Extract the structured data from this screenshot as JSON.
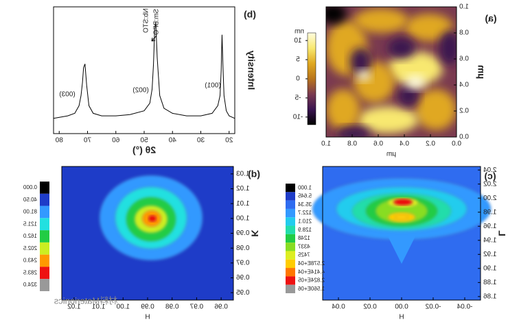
{
  "chart_data": [
    {
      "type": "heatmap",
      "panel_label": "(a)",
      "xlabel": "µm",
      "ylabel": "µm",
      "xlim": [
        0,
        1
      ],
      "ylim": [
        0,
        1
      ],
      "xticks": [
        {
          "value": 0,
          "label": "0.0"
        },
        0.2,
        0.4,
        0.6,
        0.8,
        {
          "value": 1,
          "label": "1.0"
        }
      ],
      "yticks": [
        {
          "value": 0,
          "label": "0.0"
        },
        0.2,
        0.4,
        0.6,
        0.8,
        {
          "value": 1,
          "label": "1.0"
        }
      ],
      "colorbar_unit": "nm",
      "colorbar_lim": [
        -12,
        12
      ],
      "colorbar_ticks": [
        -10,
        -5,
        0,
        5,
        10
      ],
      "colormap": [
        "#000000",
        "#3a1450",
        "#7a3a50",
        "#b8741c",
        "#e0a820",
        "#f8e870",
        "#fffde0"
      ]
    },
    {
      "type": "line",
      "panel_label": "(b)",
      "xlabel": "2θ (°)",
      "ylabel": "Intensity",
      "xlim": [
        18,
        82
      ],
      "xticks": [
        20,
        30,
        40,
        50,
        60,
        70,
        80
      ],
      "ylim": [
        0,
        100
      ],
      "annotations": [
        "(001)",
        "(002)",
        "(003)",
        "Nb:STO",
        "Sm:BFO"
      ],
      "series": [
        {
          "color": "#000000",
          "x": [
            18,
            20,
            21,
            21.8,
            22.2,
            22.5,
            22.8,
            23.2,
            24,
            26,
            30,
            35,
            40,
            43,
            44.5,
            45.4,
            45.9,
            46.3,
            46.7,
            47.2,
            48,
            50,
            55,
            60,
            65,
            68,
            69.5,
            70.3,
            70.9,
            71.4,
            71.8,
            72.3,
            73,
            74.5,
            77,
            82
          ],
          "values": [
            12,
            14,
            18,
            30,
            55,
            78,
            50,
            30,
            22,
            16,
            14,
            14,
            16,
            20,
            30,
            60,
            88,
            82,
            55,
            35,
            24,
            18,
            15,
            14,
            14,
            16,
            22,
            38,
            55,
            52,
            40,
            30,
            22,
            16,
            14,
            12
          ]
        }
      ]
    },
    {
      "type": "contour",
      "panel_label": "(c)",
      "xlabel": "H",
      "ylabel": "L",
      "xlim": [
        -0.05,
        0.05
      ],
      "ylim": [
        1.855,
        2.045
      ],
      "xticks": [
        -0.04,
        -0.02,
        {
          "value": 0,
          "label": "0.00"
        },
        0.02,
        0.04
      ],
      "yticks": [
        1.86,
        1.88,
        {
          "value": 1.9,
          "label": "1.90"
        },
        1.92,
        1.94,
        1.96,
        1.98,
        {
          "value": 2,
          "label": "2.00"
        },
        2.02,
        2.04
      ],
      "colorbar_labels": [
        "1.000",
        "5.645",
        "35.34",
        "122.7",
        "210.1",
        "128.9",
        "1248",
        "4337",
        "7425",
        "2.578E+04",
        "4.414E+04",
        "2.824E+05",
        "1.560E+06"
      ],
      "colors": [
        "#000000",
        "#1e3cc8",
        "#2f6cf0",
        "#3399ff",
        "#22ccee",
        "#22ddaa",
        "#22cc44",
        "#88dd22",
        "#ddee22",
        "#ffcc00",
        "#ff7700",
        "#ee1111",
        "#999999"
      ]
    },
    {
      "type": "contour",
      "panel_label": "(d)",
      "xlabel": "H",
      "ylabel": "K",
      "xlim": [
        0.955,
        1.025
      ],
      "ylim": [
        0.945,
        1.035
      ],
      "xticks": [
        0.96,
        0.97,
        0.98,
        0.99,
        {
          "value": 1,
          "label": "1.00"
        },
        1.01,
        1.02
      ],
      "yticks": [
        0.95,
        0.96,
        0.97,
        0.98,
        0.99,
        {
          "value": 1,
          "label": "1.00"
        },
        1.01,
        1.02,
        1.03
      ],
      "colorbar_labels": [
        "0.000",
        "40.50",
        "81.00",
        "121.5",
        "162.0",
        "202.5",
        "243.0",
        "283.5",
        "324.0"
      ],
      "colors": [
        "#000000",
        "#1e3cc8",
        "#3399ff",
        "#22e0e0",
        "#22cc44",
        "#ccee22",
        "#ff9900",
        "#ee1111",
        "#999999"
      ]
    }
  ],
  "watermark": "材料Materionics"
}
